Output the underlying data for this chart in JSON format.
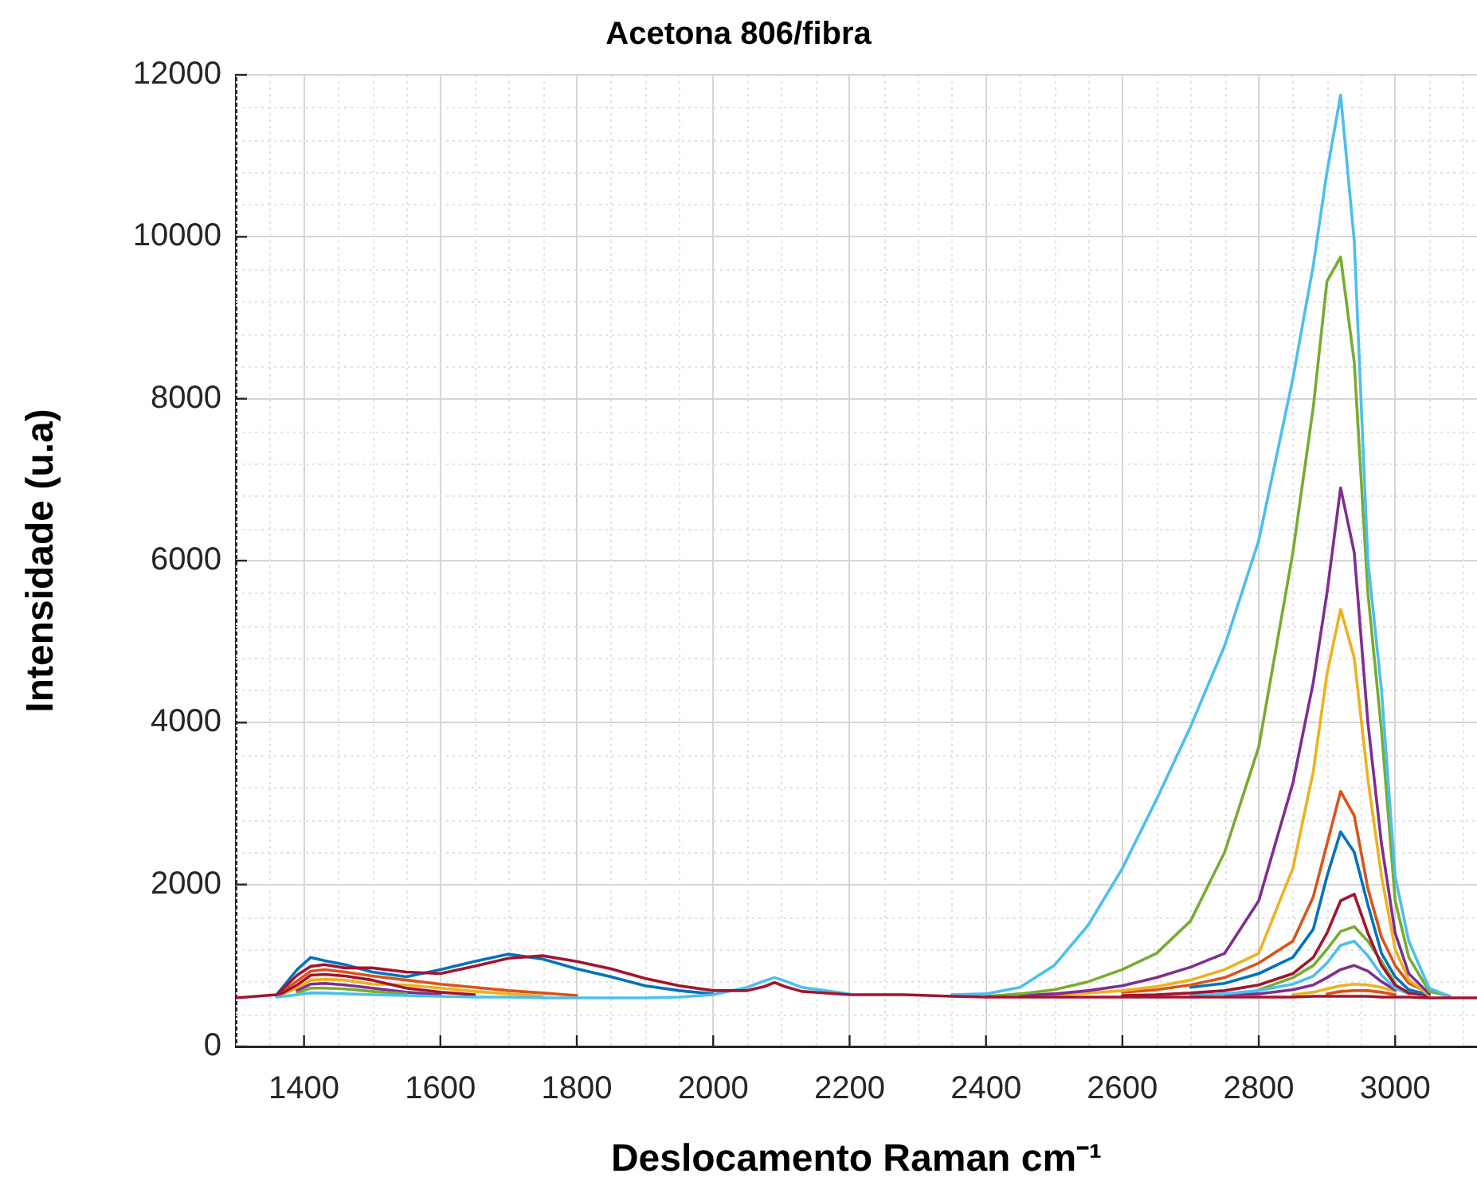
{
  "chart_data": {
    "type": "line",
    "title": "Acetona 806/fibra",
    "xlabel": "Deslocamento Raman cm⁻¹",
    "ylabel": "Intensidade (u.a)",
    "xlim": [
      1300,
      3120
    ],
    "xticks": [
      1400,
      1600,
      1800,
      2000,
      2200,
      2400,
      2600,
      2800,
      3000
    ],
    "ylim": [
      0,
      12000
    ],
    "yticks": [
      0,
      2000,
      4000,
      6000,
      8000,
      10000,
      12000
    ],
    "grid": true,
    "marker": "none",
    "x": [
      1300,
      1360,
      1390,
      1410,
      1430,
      1460,
      1500,
      1550,
      1600,
      1650,
      1700,
      1750,
      1800,
      1850,
      1900,
      1950,
      2000,
      2050,
      2075,
      2090,
      2105,
      2130,
      2200,
      2280,
      2350,
      2400,
      2450,
      2500,
      2550,
      2600,
      2650,
      2700,
      2750,
      2800,
      2850,
      2880,
      2900,
      2920,
      2940,
      2960,
      2980,
      3000,
      3020,
      3050,
      3080,
      3120
    ],
    "series": [
      {
        "color": "#0072bd",
        "values": [
          null,
          640,
          950,
          1100,
          1060,
          1010,
          920,
          860,
          950,
          1050,
          1140,
          1080,
          960,
          860,
          750,
          690,
          650,
          null,
          null,
          null,
          null,
          null,
          null,
          null,
          null,
          null,
          null,
          null,
          null,
          null,
          null,
          null,
          null,
          null,
          null,
          null,
          null,
          null,
          null,
          null,
          null,
          null,
          null,
          null,
          null,
          null
        ]
      },
      {
        "color": "#d95319",
        "values": [
          null,
          630,
          810,
          930,
          950,
          920,
          870,
          820,
          770,
          730,
          690,
          660,
          630,
          null,
          null,
          null,
          null,
          null,
          null,
          null,
          null,
          null,
          null,
          null,
          null,
          null,
          null,
          null,
          null,
          null,
          null,
          null,
          null,
          null,
          null,
          null,
          650,
          680,
          690,
          690,
          670,
          640,
          null,
          null,
          null,
          null
        ]
      },
      {
        "color": "#edb120",
        "values": [
          null,
          620,
          720,
          820,
          830,
          820,
          770,
          760,
          720,
          680,
          650,
          620,
          null,
          null,
          null,
          null,
          null,
          null,
          null,
          null,
          null,
          null,
          null,
          null,
          null,
          null,
          null,
          null,
          null,
          null,
          null,
          null,
          null,
          null,
          640,
          670,
          710,
          750,
          770,
          760,
          730,
          680,
          null,
          null,
          null,
          null
        ]
      },
      {
        "color": "#7e2f8e",
        "values": [
          null,
          null,
          690,
          770,
          780,
          760,
          720,
          670,
          640,
          null,
          null,
          null,
          null,
          null,
          null,
          null,
          null,
          null,
          null,
          null,
          null,
          null,
          null,
          null,
          null,
          null,
          null,
          null,
          null,
          null,
          null,
          null,
          640,
          650,
          700,
          760,
          850,
          950,
          1000,
          930,
          800,
          700,
          null,
          null,
          null,
          null
        ]
      },
      {
        "color": "#77ac30",
        "values": [
          null,
          null,
          660,
          720,
          720,
          710,
          680,
          650,
          null,
          null,
          null,
          null,
          null,
          null,
          null,
          null,
          null,
          null,
          null,
          null,
          null,
          null,
          null,
          null,
          null,
          null,
          null,
          null,
          null,
          null,
          null,
          null,
          null,
          700,
          850,
          1000,
          1200,
          1420,
          1480,
          1300,
          1050,
          780,
          null,
          null,
          null,
          null
        ]
      },
      {
        "color": "#4dbeee",
        "values": [
          null,
          null,
          null,
          null,
          null,
          null,
          null,
          null,
          null,
          null,
          null,
          null,
          null,
          null,
          null,
          null,
          null,
          null,
          null,
          null,
          null,
          null,
          null,
          null,
          null,
          null,
          null,
          null,
          null,
          null,
          null,
          630,
          650,
          690,
          770,
          870,
          1030,
          1250,
          1300,
          1120,
          880,
          720,
          650,
          null,
          null,
          null
        ]
      },
      {
        "color": "#a2142f",
        "values": [
          null,
          620,
          760,
          880,
          890,
          870,
          820,
          720,
          670,
          640,
          null,
          null,
          null,
          null,
          null,
          null,
          null,
          null,
          null,
          null,
          null,
          null,
          null,
          null,
          null,
          null,
          null,
          null,
          null,
          630,
          640,
          660,
          690,
          760,
          900,
          1100,
          1400,
          1800,
          1880,
          1400,
          1000,
          760,
          660,
          630,
          null,
          null
        ]
      },
      {
        "color": "#0072bd",
        "values": [
          null,
          null,
          null,
          null,
          null,
          null,
          null,
          null,
          null,
          null,
          null,
          null,
          null,
          null,
          null,
          null,
          null,
          null,
          null,
          null,
          null,
          null,
          null,
          null,
          null,
          null,
          null,
          null,
          null,
          null,
          null,
          730,
          780,
          900,
          1100,
          1450,
          2100,
          2650,
          2400,
          1750,
          1150,
          860,
          700,
          640,
          null,
          null
        ]
      },
      {
        "color": "#d95319",
        "values": [
          null,
          null,
          null,
          null,
          null,
          null,
          null,
          null,
          null,
          null,
          null,
          null,
          null,
          null,
          null,
          null,
          null,
          null,
          null,
          null,
          null,
          null,
          null,
          null,
          null,
          null,
          null,
          null,
          null,
          670,
          700,
          760,
          850,
          1030,
          1300,
          1850,
          2500,
          3150,
          2850,
          1950,
          1350,
          1000,
          780,
          660,
          null,
          null
        ]
      },
      {
        "color": "#edb120",
        "values": [
          null,
          null,
          null,
          null,
          null,
          null,
          null,
          null,
          null,
          null,
          null,
          null,
          null,
          null,
          null,
          null,
          null,
          null,
          null,
          null,
          null,
          null,
          null,
          null,
          null,
          null,
          null,
          640,
          660,
          690,
          740,
          820,
          950,
          1150,
          2200,
          3400,
          4600,
          5400,
          4800,
          3300,
          2100,
          1200,
          820,
          630,
          null,
          null
        ]
      },
      {
        "color": "#7e2f8e",
        "values": [
          null,
          null,
          null,
          null,
          null,
          null,
          null,
          null,
          null,
          null,
          null,
          null,
          null,
          null,
          null,
          null,
          null,
          null,
          null,
          null,
          null,
          null,
          null,
          null,
          null,
          null,
          630,
          650,
          690,
          750,
          850,
          980,
          1150,
          1800,
          3250,
          4500,
          5600,
          6900,
          6100,
          4000,
          2500,
          1400,
          900,
          650,
          null,
          null
        ]
      },
      {
        "color": "#77ac30",
        "values": [
          null,
          null,
          null,
          null,
          null,
          null,
          null,
          null,
          null,
          null,
          null,
          null,
          null,
          null,
          null,
          null,
          null,
          null,
          null,
          null,
          null,
          null,
          null,
          null,
          null,
          620,
          650,
          700,
          800,
          950,
          1150,
          1550,
          2400,
          3700,
          6100,
          7900,
          9450,
          9750,
          8450,
          5600,
          3900,
          1800,
          1100,
          680,
          620,
          null
        ]
      },
      {
        "color": "#4dbeee",
        "values": [
          null,
          610,
          640,
          660,
          660,
          650,
          640,
          630,
          620,
          610,
          610,
          600,
          600,
          600,
          600,
          610,
          640,
          730,
          810,
          850,
          810,
          730,
          650,
          null,
          640,
          650,
          730,
          1000,
          1500,
          2200,
          3050,
          3950,
          4950,
          6250,
          8250,
          9650,
          10800,
          11750,
          9950,
          6000,
          4400,
          2100,
          1300,
          720,
          620,
          null
        ]
      },
      {
        "color": "#a2142f",
        "values": [
          600,
          640,
          880,
          990,
          1010,
          970,
          970,
          920,
          900,
          990,
          1090,
          1120,
          1050,
          960,
          840,
          750,
          690,
          690,
          740,
          790,
          740,
          680,
          640,
          640,
          620,
          610,
          610,
          610,
          610,
          610,
          610,
          610,
          610,
          610,
          610,
          620,
          620,
          620,
          620,
          620,
          610,
          610,
          610,
          600,
          600,
          600
        ]
      }
    ]
  }
}
